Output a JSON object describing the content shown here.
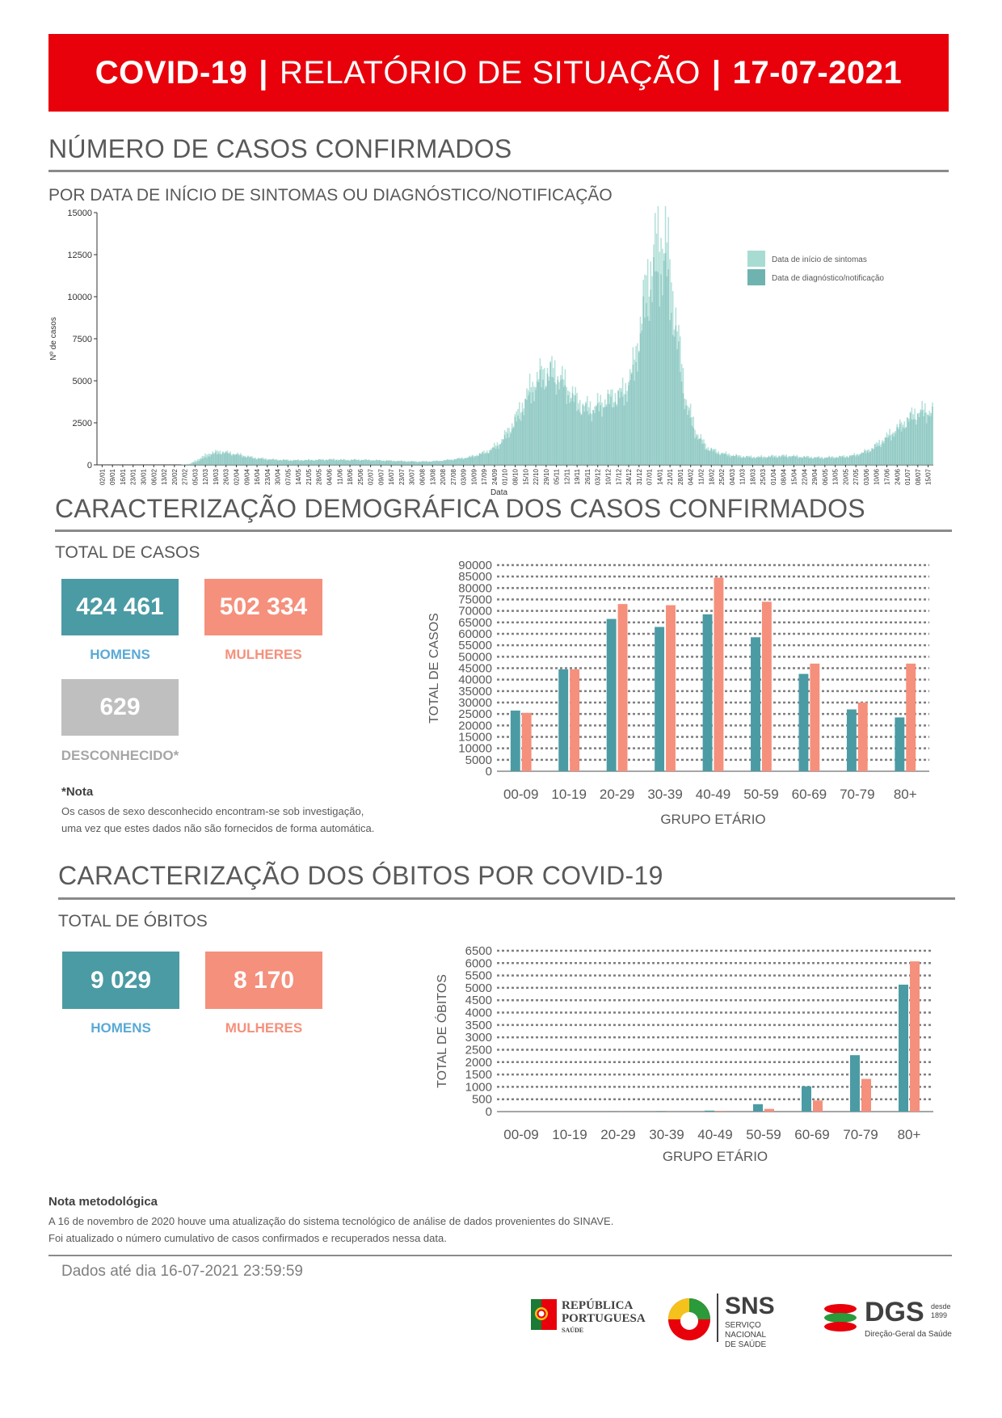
{
  "header": {
    "left": "COVID-19",
    "sep1": "|",
    "middle": "RELATÓRIO DE SITUAÇÃO",
    "sep2": "|",
    "date": "17-07-2021"
  },
  "section1": {
    "title": "NÚMERO DE CASOS CONFIRMADOS",
    "subtitle": "POR DATA DE INÍCIO DE SINTOMAS OU DIAGNÓSTICO/NOTIFICAÇÃO"
  },
  "section2": {
    "title": "CARACTERIZAÇÃO DEMOGRÁFICA DOS CASOS CONFIRMADOS",
    "subtitle": "TOTAL DE CASOS",
    "men_value": "424 461",
    "men_label": "HOMENS",
    "women_value": "502 334",
    "women_label": "MULHERES",
    "unknown_value": "629",
    "unknown_label": "DESCONHECIDO*",
    "note_head": "*Nota",
    "note_line1": "Os casos de sexo desconhecido encontram-se sob investigação,",
    "note_line2": "uma vez que estes dados não são fornecidos de forma automática."
  },
  "section3": {
    "title": "CARACTERIZAÇÃO DOS ÓBITOS POR COVID-19",
    "subtitle": "TOTAL DE ÓBITOS",
    "men_value": "9 029",
    "men_label": "HOMENS",
    "women_value": "8 170",
    "women_label": "MULHERES"
  },
  "method_note": {
    "head": "Nota metodológica",
    "line1": "A 16 de novembro de 2020 houve uma atualização do sistema tecnológico de análise de dados provenientes do SINAVE.",
    "line2": "Foi atualizado o número cumulativo de casos confirmados e recuperados nessa data."
  },
  "footer": {
    "data_date": "Dados até dia 16-07-2021 23:59:59",
    "logo1_line1": "REPÚBLICA",
    "logo1_line2": "PORTUGUESA",
    "logo1_line3": "SAÚDE",
    "logo2_big": "SNS",
    "logo2_line1": "SERVIÇO NACIONAL",
    "logo2_line2": "DE SAÚDE",
    "logo3_big": "DGS",
    "logo3_desde": "desde",
    "logo3_year": "1899",
    "logo3_sub": "Direção-Geral da Saúde"
  },
  "colors": {
    "banner": "#e8000b",
    "men": "#4b9ba4",
    "women": "#f5907c",
    "unknown": "#bfbfbf",
    "epi_symptoms": "#a8dcd3",
    "epi_diagnosis": "#6fb3b0"
  },
  "chart_data": [
    {
      "type": "bar",
      "title": "",
      "xlabel": "Data",
      "ylabel": "Nº de casos",
      "ylim": [
        0,
        15000
      ],
      "yticks": [
        "0",
        "2500",
        "5000",
        "7500",
        "10000",
        "12500",
        "15000"
      ],
      "x_tick_labels": [
        "02/01",
        "09/01",
        "16/01",
        "23/01",
        "30/01",
        "06/02",
        "13/02",
        "20/02",
        "27/02",
        "05/03",
        "12/03",
        "19/03",
        "26/03",
        "02/04",
        "09/04",
        "16/04",
        "23/04",
        "30/04",
        "07/05",
        "14/05",
        "21/05",
        "28/05",
        "04/06",
        "11/06",
        "18/06",
        "25/06",
        "02/07",
        "09/07",
        "16/07",
        "23/07",
        "30/07",
        "06/08",
        "13/08",
        "20/08",
        "27/08",
        "03/09",
        "10/09",
        "17/09",
        "24/09",
        "01/10",
        "08/10",
        "15/10",
        "22/10",
        "29/10",
        "05/11",
        "12/11",
        "19/11",
        "26/11",
        "03/12",
        "10/12",
        "17/12",
        "24/12",
        "31/12",
        "07/01",
        "14/01",
        "21/01",
        "28/01",
        "04/02",
        "11/02",
        "18/02",
        "25/02",
        "04/03",
        "11/03",
        "18/03",
        "25/03",
        "01/04",
        "08/04",
        "15/04",
        "22/04",
        "29/04",
        "06/05",
        "13/05",
        "20/05",
        "27/05",
        "03/06",
        "10/06",
        "17/06",
        "24/06",
        "01/07",
        "08/07",
        "15/07"
      ],
      "legend": [
        "Data de início de sintomas",
        "Data de diagnóstico/notificação"
      ],
      "legend_position": "top-right",
      "series_weekly_approx": [
        {
          "name": "Data de início de sintomas",
          "values": [
            0,
            0,
            0,
            0,
            0,
            0,
            0,
            0,
            0,
            80,
            450,
            750,
            820,
            700,
            600,
            450,
            380,
            320,
            300,
            280,
            290,
            300,
            320,
            330,
            300,
            310,
            300,
            280,
            260,
            240,
            220,
            200,
            210,
            240,
            300,
            380,
            480,
            650,
            900,
            1400,
            2300,
            3500,
            4800,
            5600,
            5800,
            5200,
            4300,
            3600,
            3500,
            3900,
            4200,
            4500,
            6200,
            10500,
            13500,
            14200,
            9000,
            4000,
            2000,
            1100,
            800,
            650,
            550,
            500,
            480,
            520,
            550,
            560,
            500,
            480,
            450,
            470,
            500,
            560,
            720,
            1000,
            1500,
            2000,
            2500,
            3100,
            3300
          ]
        },
        {
          "name": "Data de diagnóstico/notificação",
          "values": [
            0,
            0,
            0,
            0,
            0,
            0,
            0,
            0,
            0,
            40,
            300,
            600,
            700,
            650,
            520,
            400,
            340,
            300,
            280,
            260,
            270,
            280,
            300,
            300,
            280,
            290,
            280,
            260,
            240,
            220,
            200,
            190,
            200,
            220,
            280,
            350,
            420,
            600,
            800,
            1200,
            2000,
            3000,
            4200,
            5000,
            5200,
            4700,
            3800,
            3200,
            3100,
            3500,
            3800,
            4000,
            5500,
            9000,
            11000,
            11500,
            7500,
            3300,
            1700,
            950,
            700,
            560,
            480,
            440,
            420,
            450,
            480,
            490,
            450,
            420,
            400,
            420,
            450,
            500,
            650,
            900,
            1300,
            1800,
            2300,
            2800,
            3000
          ]
        }
      ]
    },
    {
      "type": "bar",
      "title": "",
      "xlabel": "GRUPO ETÁRIO",
      "ylabel": "TOTAL DE CASOS",
      "ylim": [
        0,
        90000
      ],
      "yticks": [
        "0",
        "5000",
        "10000",
        "15000",
        "20000",
        "25000",
        "30000",
        "35000",
        "40000",
        "45000",
        "50000",
        "55000",
        "60000",
        "65000",
        "70000",
        "75000",
        "80000",
        "85000",
        "90000"
      ],
      "categories": [
        "00-09",
        "10-19",
        "20-29",
        "30-39",
        "40-49",
        "50-59",
        "60-69",
        "70-79",
        "80+"
      ],
      "series": [
        {
          "values": [
            26500,
            44500,
            66500,
            63000,
            68500,
            58500,
            42500,
            27000,
            23500
          ]
        },
        {
          "values": [
            25500,
            44500,
            73000,
            72500,
            84500,
            74000,
            47000,
            30000,
            47000
          ]
        }
      ]
    },
    {
      "type": "bar",
      "title": "",
      "xlabel": "GRUPO ETÁRIO",
      "ylabel": "TOTAL DE ÓBITOS",
      "ylim": [
        0,
        6500
      ],
      "yticks": [
        "0",
        "500",
        "1000",
        "1500",
        "2000",
        "2500",
        "3000",
        "3500",
        "4000",
        "4500",
        "5000",
        "5500",
        "6000",
        "6500"
      ],
      "categories": [
        "00-09",
        "10-19",
        "20-29",
        "30-39",
        "40-49",
        "50-59",
        "60-69",
        "70-79",
        "80+"
      ],
      "series": [
        {
          "values": [
            0,
            0,
            5,
            10,
            40,
            300,
            1020,
            2280,
            5130
          ]
        },
        {
          "values": [
            0,
            0,
            3,
            5,
            20,
            110,
            450,
            1320,
            6070
          ]
        }
      ]
    }
  ]
}
